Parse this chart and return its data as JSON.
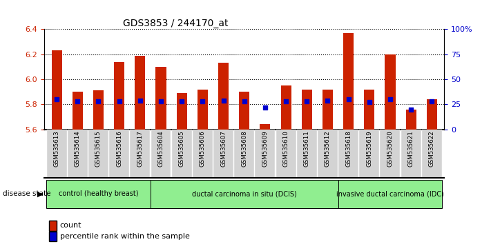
{
  "title": "GDS3853 / 244170_at",
  "samples": [
    "GSM535613",
    "GSM535614",
    "GSM535615",
    "GSM535616",
    "GSM535617",
    "GSM535604",
    "GSM535605",
    "GSM535606",
    "GSM535607",
    "GSM535608",
    "GSM535609",
    "GSM535610",
    "GSM535611",
    "GSM535612",
    "GSM535618",
    "GSM535619",
    "GSM535620",
    "GSM535621",
    "GSM535622"
  ],
  "counts": [
    6.23,
    5.9,
    5.91,
    6.14,
    6.19,
    6.1,
    5.89,
    5.92,
    6.13,
    5.9,
    5.64,
    5.95,
    5.92,
    5.92,
    6.37,
    5.92,
    6.2,
    5.76,
    5.84
  ],
  "percentiles": [
    30,
    28,
    28,
    28,
    29,
    28,
    28,
    28,
    29,
    28,
    22,
    28,
    28,
    29,
    30,
    27,
    30,
    20,
    28
  ],
  "ylim_left": [
    5.6,
    6.4
  ],
  "ylim_right": [
    0,
    100
  ],
  "yticks_left": [
    5.6,
    5.8,
    6.0,
    6.2,
    6.4
  ],
  "yticks_right": [
    0,
    25,
    50,
    75,
    100
  ],
  "ytick_labels_right": [
    "0",
    "25",
    "50",
    "75",
    "100%"
  ],
  "groups": [
    {
      "label": "control (healthy breast)",
      "start": 0,
      "end": 5
    },
    {
      "label": "ductal carcinoma in situ (DCIS)",
      "start": 5,
      "end": 14
    },
    {
      "label": "invasive ductal carcinoma (IDC)",
      "start": 14,
      "end": 19
    }
  ],
  "bar_color": "#CC2200",
  "bar_baseline": 5.6,
  "percentile_color": "#0000CC",
  "grid_color": "#000000",
  "bg_color": "#FFFFFF",
  "tick_color_left": "#CC2200",
  "tick_color_right": "#0000CC",
  "legend_count_color": "#CC2200",
  "legend_pct_color": "#0000CC",
  "group_color": "#90EE90",
  "xtick_bg": "#D3D3D3"
}
